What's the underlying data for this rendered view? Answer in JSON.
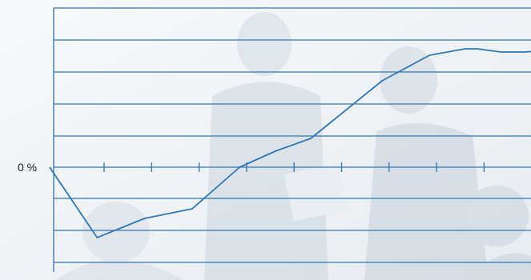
{
  "chart_data": {
    "type": "line",
    "title": "",
    "xlabel": "",
    "ylabel": "",
    "y_tick_labels": [
      "0 %"
    ],
    "grid": true,
    "legend": "none",
    "x": [
      0,
      1,
      1.5,
      2,
      3,
      4,
      4.75,
      5.5,
      6,
      7,
      8,
      8.75,
      9,
      9.5,
      10,
      11
    ],
    "y": [
      0,
      -2.2,
      -1.9,
      -1.6,
      -1.3,
      0,
      0.5,
      0.9,
      1.5,
      2.7,
      3.5,
      3.7,
      3.7,
      3.6,
      3.6,
      3.7
    ],
    "ylim": [
      -3,
      5
    ],
    "xlim": [
      0,
      11
    ],
    "series": [
      {
        "values_note_free": true,
        "color": "#2f77b5"
      }
    ],
    "colors": {
      "line": "#2f77b5",
      "grid": "#2f77b5",
      "background_tint": "#dfe6ec"
    }
  }
}
